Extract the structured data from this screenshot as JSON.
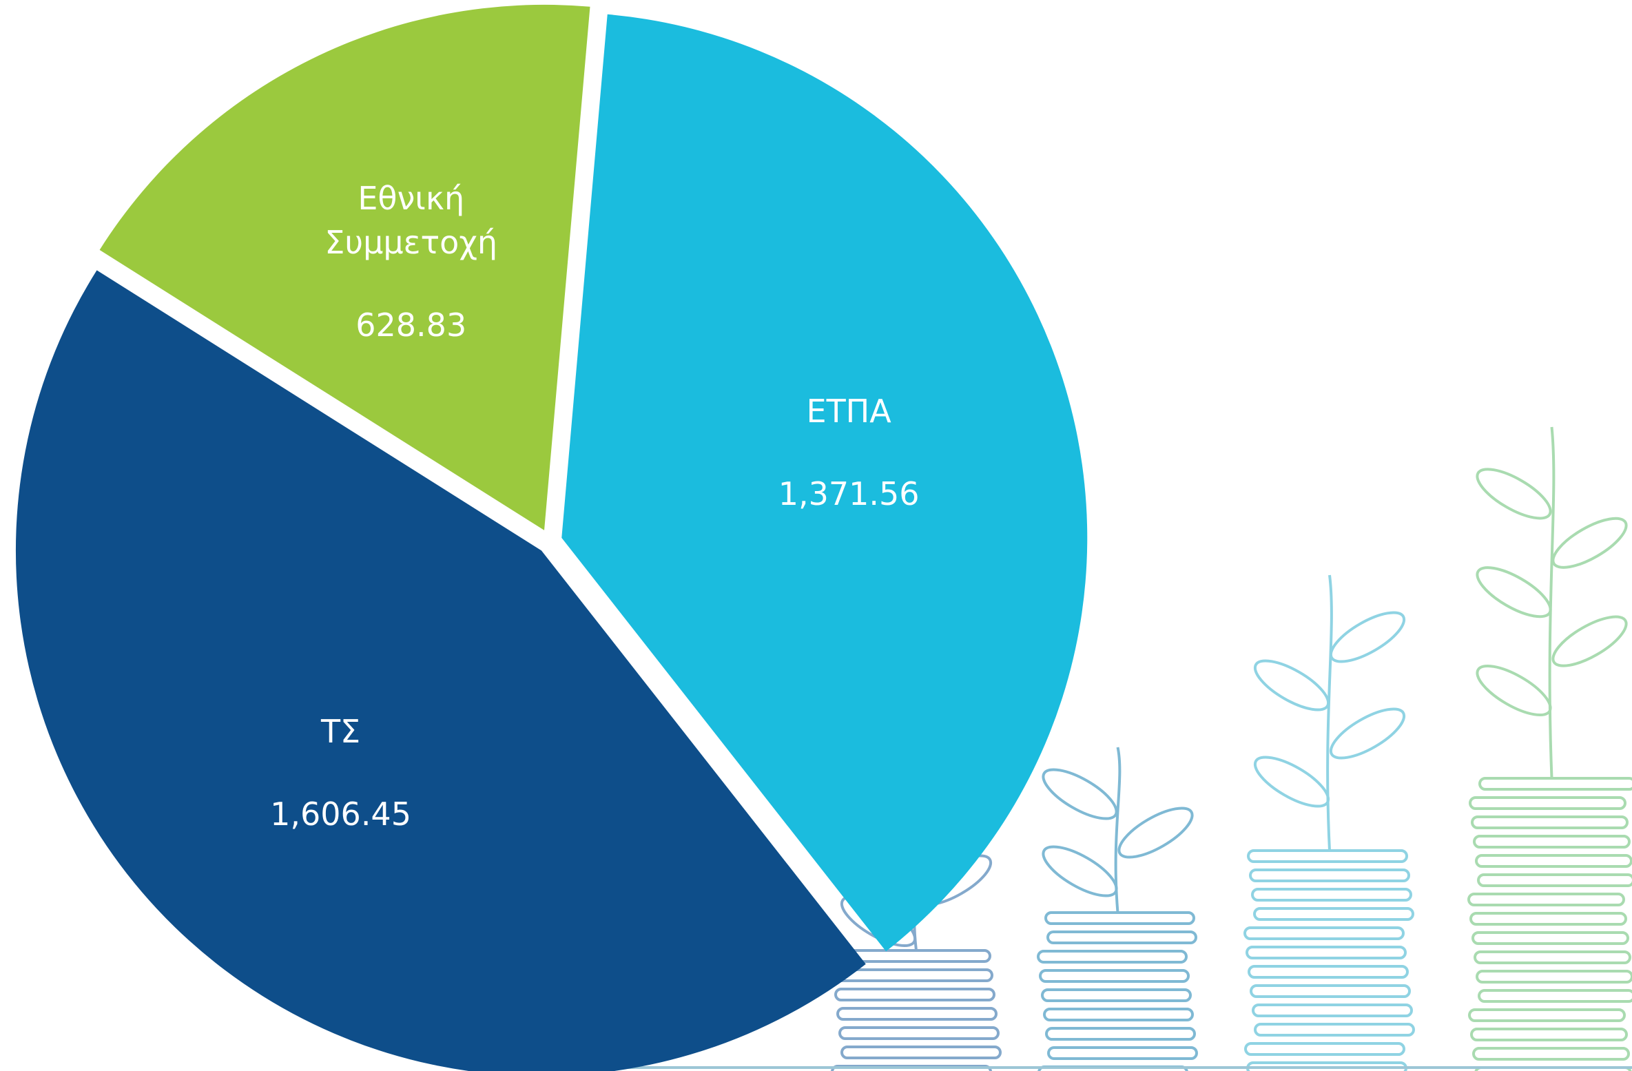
{
  "chart_data": {
    "type": "pie",
    "categories": [
      "ΕΤΠΑ",
      "ΤΣ",
      "Εθνική Συμμετοχή"
    ],
    "values": [
      1371.56,
      1606.45,
      628.83
    ],
    "value_labels": [
      "1,371.56",
      "1,606.45",
      "628.83"
    ],
    "colors": [
      "#1bbcde",
      "#0e4e8a",
      "#9bc93e"
    ]
  }
}
